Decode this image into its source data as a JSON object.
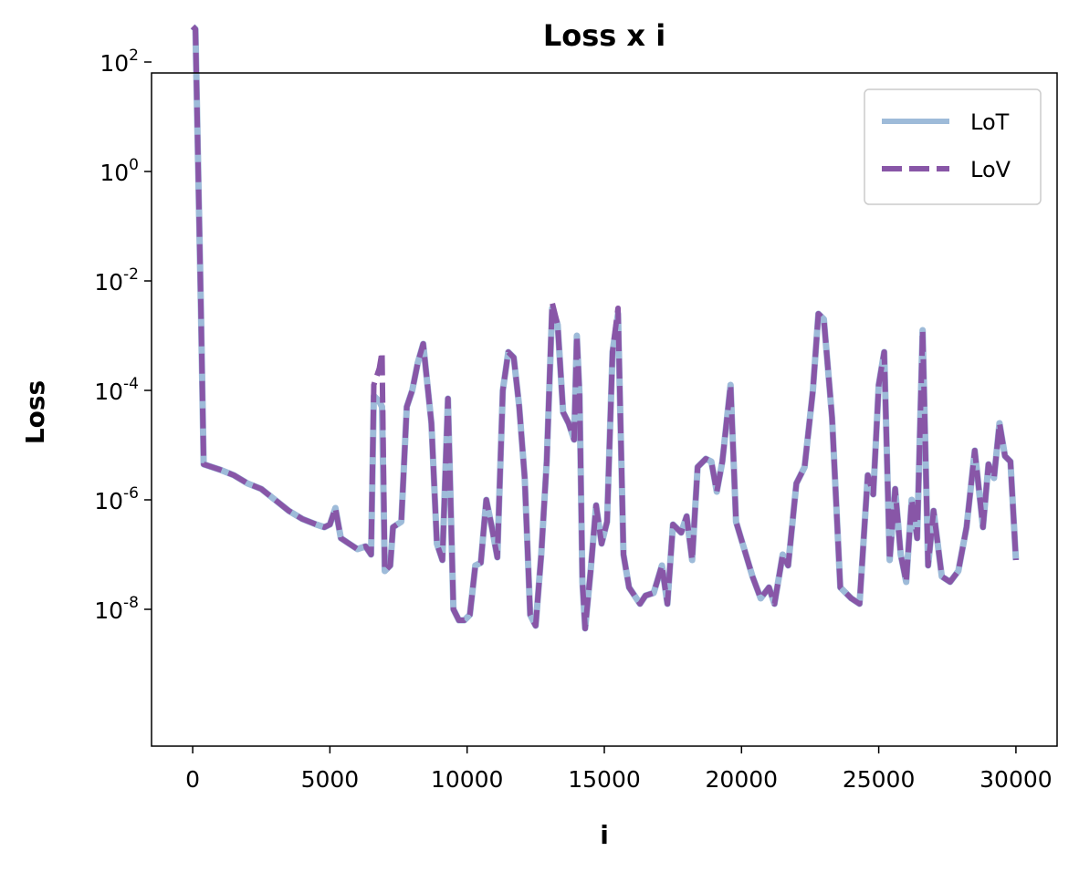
{
  "chart_data": {
    "type": "line",
    "title": "Loss x i",
    "xlabel": "i",
    "ylabel": "Loss",
    "xlim": [
      -1500,
      31500
    ],
    "ylim_exponent": [
      -10.5,
      1.8
    ],
    "yscale": "log",
    "xticks": [
      0,
      5000,
      10000,
      15000,
      20000,
      25000,
      30000
    ],
    "xtick_labels": [
      "0",
      "5000",
      "10000",
      "15000",
      "20000",
      "25000",
      "30000"
    ],
    "yticks_exponent": [
      2,
      0,
      -2,
      -4,
      -6,
      -8
    ],
    "ytick_base": "10",
    "ytick_exponent_labels": [
      "2",
      "0",
      "-2",
      "-4",
      "-6",
      "-8"
    ],
    "grid": false,
    "legend_position": "top-right",
    "legend": [
      "LoT",
      "LoV"
    ],
    "colors": {
      "LoT": "#9ebbd9",
      "LoV": "#8856a7"
    },
    "x": [
      0,
      100,
      300,
      400,
      1000,
      1500,
      2000,
      2500,
      3000,
      3500,
      4000,
      4500,
      4800,
      5000,
      5200,
      5400,
      5700,
      6000,
      6300,
      6500,
      6600,
      6800,
      6900,
      7000,
      7200,
      7300,
      7600,
      7800,
      8000,
      8200,
      8400,
      8700,
      8900,
      9100,
      9300,
      9500,
      9700,
      9900,
      10100,
      10300,
      10500,
      10700,
      10900,
      11100,
      11300,
      11500,
      11700,
      11900,
      12100,
      12300,
      12500,
      12700,
      12900,
      13100,
      13300,
      13500,
      13700,
      13900,
      14000,
      14100,
      14200,
      14300,
      14500,
      14700,
      14900,
      15100,
      15300,
      15500,
      15700,
      15900,
      16300,
      16500,
      16800,
      17100,
      17300,
      17500,
      17800,
      18000,
      18200,
      18400,
      18700,
      18900,
      19100,
      19300,
      19600,
      19800,
      20100,
      20400,
      20700,
      21000,
      21200,
      21500,
      21700,
      22000,
      22300,
      22600,
      22800,
      23000,
      23300,
      23600,
      24000,
      24300,
      24600,
      24800,
      25000,
      25200,
      25400,
      25600,
      25800,
      26000,
      26200,
      26400,
      26600,
      26800,
      27000,
      27300,
      27600,
      27900,
      28200,
      28500,
      28800,
      29000,
      29200,
      29400,
      29600,
      29800,
      30000
    ],
    "series": [
      {
        "name": "LoT",
        "y_exponent": [
          2.65,
          2.6,
          -2.5,
          -5.35,
          -5.45,
          -5.55,
          -5.7,
          -5.8,
          -6.0,
          -6.2,
          -6.35,
          -6.45,
          -6.5,
          -6.45,
          -6.15,
          -6.7,
          -6.8,
          -6.9,
          -6.85,
          -7.0,
          -4.1,
          -4.2,
          -4.3,
          -7.3,
          -7.2,
          -6.5,
          -6.4,
          -4.3,
          -4.0,
          -3.5,
          -3.15,
          -4.6,
          -6.8,
          -7.1,
          -4.15,
          -8.0,
          -8.2,
          -8.2,
          -8.1,
          -7.2,
          -7.15,
          -6.0,
          -6.5,
          -7.05,
          -4.0,
          -3.3,
          -3.4,
          -4.3,
          -5.6,
          -8.1,
          -8.3,
          -7.0,
          -5.3,
          -2.5,
          -2.8,
          -4.4,
          -4.6,
          -4.9,
          -3.0,
          -4.1,
          -7.5,
          -8.35,
          -7.3,
          -6.1,
          -6.8,
          -6.4,
          -3.3,
          -2.6,
          -7.0,
          -7.6,
          -7.9,
          -7.75,
          -7.7,
          -7.2,
          -7.9,
          -6.45,
          -6.6,
          -6.3,
          -7.1,
          -5.4,
          -5.25,
          -5.3,
          -5.85,
          -5.3,
          -3.9,
          -6.4,
          -6.9,
          -7.4,
          -7.8,
          -7.6,
          -7.9,
          -7.0,
          -7.2,
          -5.7,
          -5.4,
          -4.0,
          -2.6,
          -2.7,
          -4.5,
          -7.6,
          -7.8,
          -7.9,
          -5.55,
          -5.9,
          -3.9,
          -3.3,
          -7.1,
          -5.8,
          -7.0,
          -7.5,
          -6.0,
          -6.7,
          -2.9,
          -7.2,
          -6.2,
          -7.4,
          -7.5,
          -7.3,
          -6.5,
          -5.1,
          -6.5,
          -5.35,
          -5.6,
          -4.6,
          -5.2,
          -5.3,
          -7.1
        ],
        "visible": true
      },
      {
        "name": "LoV",
        "y_exponent": [
          2.65,
          2.6,
          -2.5,
          -5.35,
          -5.45,
          -5.55,
          -5.7,
          -5.8,
          -6.0,
          -6.2,
          -6.35,
          -6.45,
          -6.5,
          -6.45,
          -6.15,
          -6.7,
          -6.8,
          -6.9,
          -6.85,
          -7.0,
          -3.9,
          -3.6,
          -3.3,
          -7.3,
          -7.2,
          -6.5,
          -6.4,
          -4.3,
          -4.0,
          -3.5,
          -3.15,
          -4.6,
          -6.8,
          -7.1,
          -4.15,
          -8.0,
          -8.2,
          -8.2,
          -8.1,
          -7.2,
          -7.15,
          -6.0,
          -6.5,
          -7.05,
          -4.0,
          -3.3,
          -3.4,
          -4.3,
          -5.6,
          -8.1,
          -8.3,
          -7.0,
          -5.3,
          -2.4,
          -2.8,
          -4.4,
          -4.6,
          -4.9,
          -3.0,
          -4.1,
          -7.5,
          -8.35,
          -7.3,
          -6.1,
          -6.8,
          -6.4,
          -3.3,
          -2.5,
          -7.0,
          -7.6,
          -7.9,
          -7.75,
          -7.7,
          -7.2,
          -7.9,
          -6.45,
          -6.6,
          -6.3,
          -7.1,
          -5.4,
          -5.25,
          -5.3,
          -5.85,
          -5.3,
          -3.9,
          -6.4,
          -6.9,
          -7.4,
          -7.8,
          -7.6,
          -7.9,
          -7.0,
          -7.2,
          -5.7,
          -5.4,
          -4.0,
          -2.6,
          -2.7,
          -4.5,
          -7.6,
          -7.8,
          -7.9,
          -5.55,
          -5.9,
          -3.9,
          -3.3,
          -7.1,
          -5.8,
          -7.0,
          -7.5,
          -6.0,
          -6.7,
          -2.9,
          -7.2,
          -6.2,
          -7.4,
          -7.5,
          -7.3,
          -6.5,
          -5.1,
          -6.5,
          -5.35,
          -5.6,
          -4.6,
          -5.2,
          -5.3,
          -7.1
        ],
        "visible": true
      }
    ]
  }
}
